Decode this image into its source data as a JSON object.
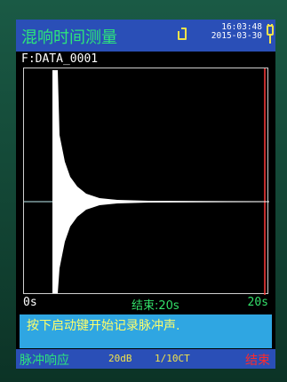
{
  "screen": {
    "title": "混响时间测量",
    "time": "16:03:48",
    "date": "2015-03-30",
    "file": "F:DATA_0001",
    "axis": {
      "start": "0s",
      "end": "20s"
    },
    "status": "结束:20s",
    "message": "按下启动键开始记录脉冲声.",
    "bottom": {
      "mode": "脉冲响应",
      "range": "20dB",
      "band": "1/10CT",
      "end_label": "结束"
    }
  },
  "colors": {
    "bar_blue": "#2a4fb7",
    "message_blue": "#2fa6e2",
    "green_text": "#2ce57b",
    "yellow_text": "#f1e34a",
    "red_text": "#ff2a2a",
    "cursor_red": "#ff3a3a"
  },
  "icons": {
    "sd_card": "sd-card-icon",
    "power": "power-plug-icon"
  }
}
